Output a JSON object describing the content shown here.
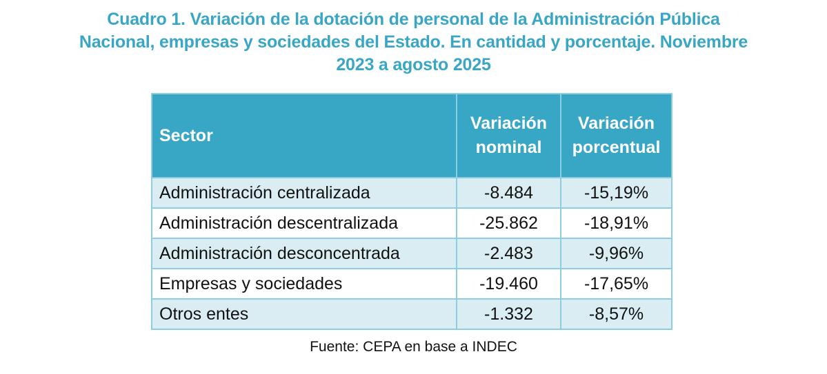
{
  "title": {
    "lines": [
      "Cuadro 1. Variación de la dotación de personal de la Administración Pública",
      "Nacional, empresas y sociedades del Estado. En cantidad y porcentaje. Noviembre",
      "2023 a agosto 2025"
    ]
  },
  "colors": {
    "title": "#3aa6c6",
    "header_bg": "#38a6c5",
    "border": "#8ccde0",
    "row_shade": "#d9edf3"
  },
  "table": {
    "headers": {
      "sector": "Sector",
      "nominal_line1": "Variación",
      "nominal_line2": "nominal",
      "percent_line1": "Variación",
      "percent_line2": "porcentual"
    },
    "rows": [
      {
        "sector": "Administración centralizada",
        "nominal": "-8.484",
        "percent": "-15,19%"
      },
      {
        "sector": "Administración descentralizada",
        "nominal": "-25.862",
        "percent": "-18,91%"
      },
      {
        "sector": "Administración desconcentrada",
        "nominal": "-2.483",
        "percent": "-9,96%"
      },
      {
        "sector": "Empresas y sociedades",
        "nominal": "-19.460",
        "percent": "-17,65%"
      },
      {
        "sector": "Otros entes",
        "nominal": "-1.332",
        "percent": "-8,57%"
      }
    ]
  },
  "source": "Fuente: CEPA en base a INDEC"
}
